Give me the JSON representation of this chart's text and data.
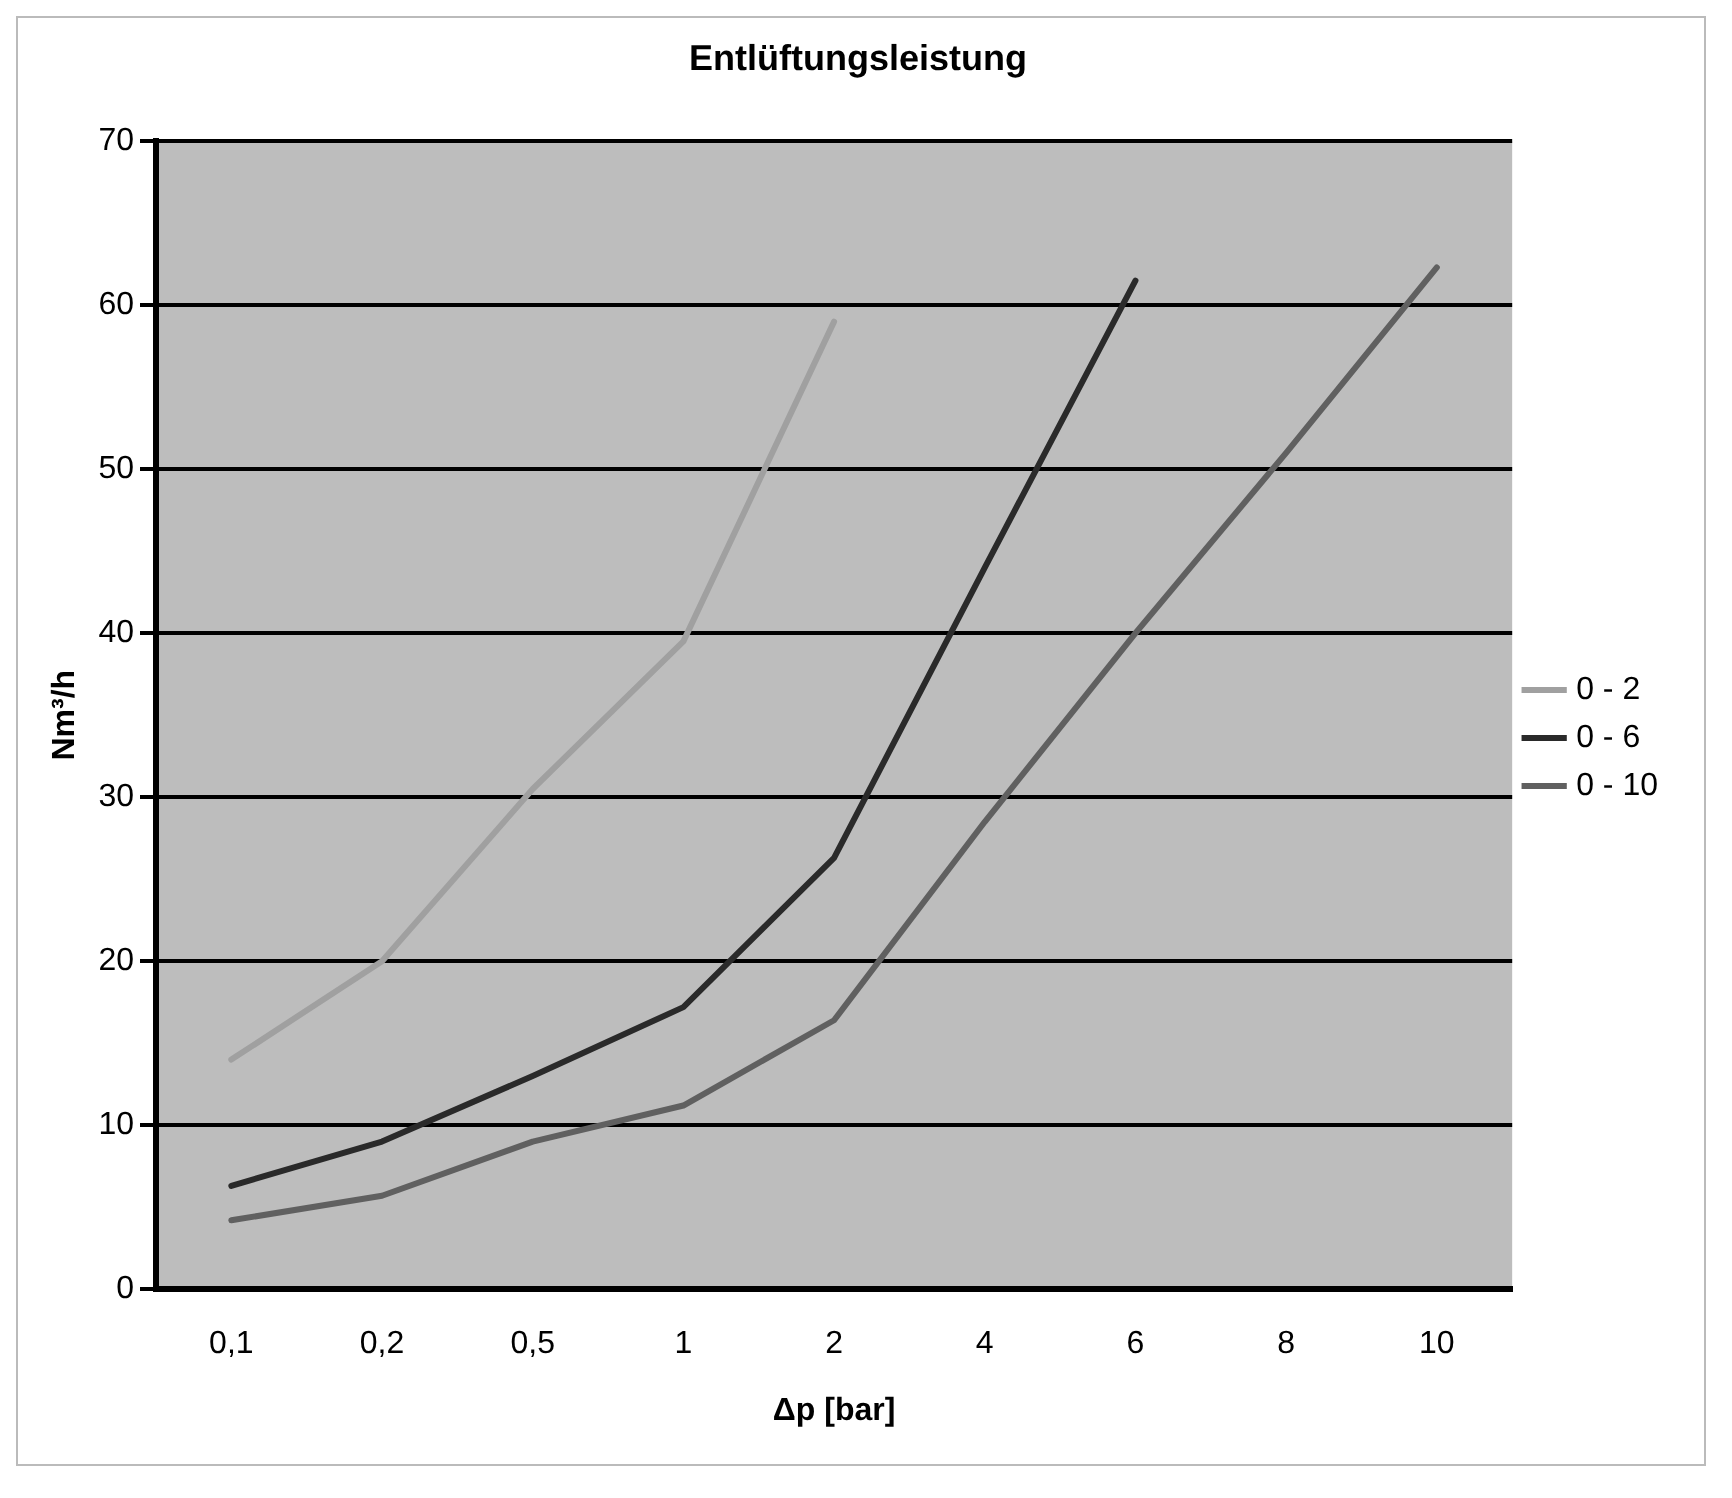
{
  "chart_data": {
    "type": "line",
    "title": "Entlüftungsleistung",
    "xlabel": "Δp [bar]",
    "ylabel": "Nm³/h",
    "categories": [
      "0,1",
      "0,2",
      "0,5",
      "1",
      "2",
      "4",
      "6",
      "8",
      "10"
    ],
    "series": [
      {
        "name": "0 - 2",
        "color": "#a0a0a0",
        "values": [
          14,
          20,
          30.5,
          39.5,
          59,
          null,
          null,
          null,
          null
        ]
      },
      {
        "name": "0 - 6",
        "color": "#2a2a2a",
        "values": [
          6.3,
          9,
          13,
          17.2,
          26.3,
          44,
          61.5,
          null,
          null
        ]
      },
      {
        "name": "0 - 10",
        "color": "#606060",
        "values": [
          4.2,
          5.7,
          9,
          11.2,
          16.4,
          28.5,
          40,
          51,
          62.3
        ]
      }
    ],
    "ylim": [
      0,
      70
    ],
    "yticks": [
      0,
      10,
      20,
      30,
      40,
      50,
      60,
      70
    ],
    "grid": "y",
    "legend": "right",
    "marker": "none",
    "line_style": "solid"
  }
}
